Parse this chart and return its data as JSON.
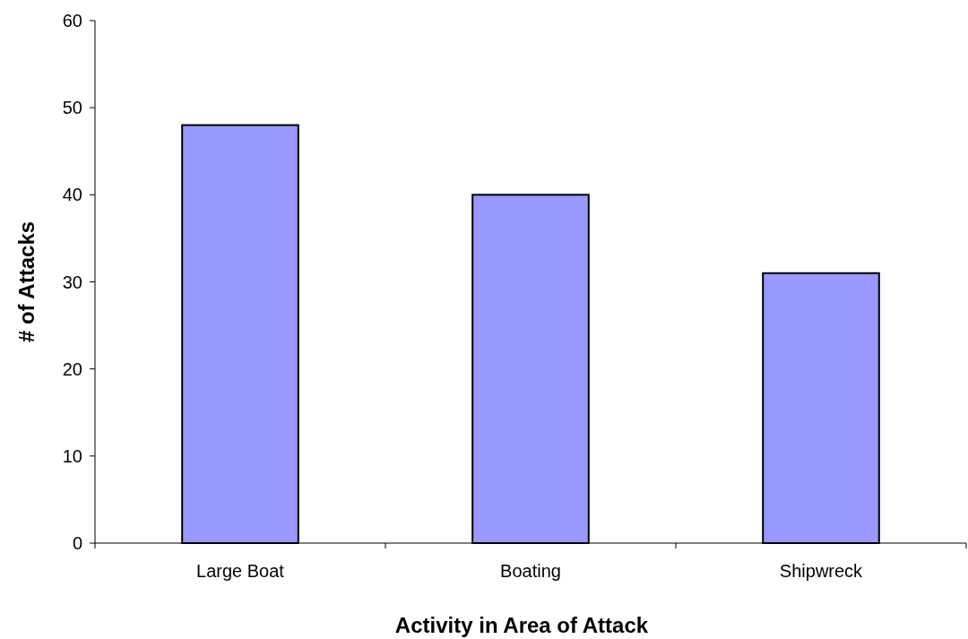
{
  "chart_data": {
    "type": "bar",
    "xlabel": "Activity in Area of Attack",
    "ylabel": "# of Attacks",
    "categories": [
      "Large Boat",
      "Boating",
      "Shipwreck"
    ],
    "values": [
      48,
      40,
      31
    ],
    "color": "#9999ff",
    "ylim": [
      0,
      60
    ],
    "yticks": [
      0,
      10,
      20,
      30,
      40,
      50,
      60
    ]
  }
}
